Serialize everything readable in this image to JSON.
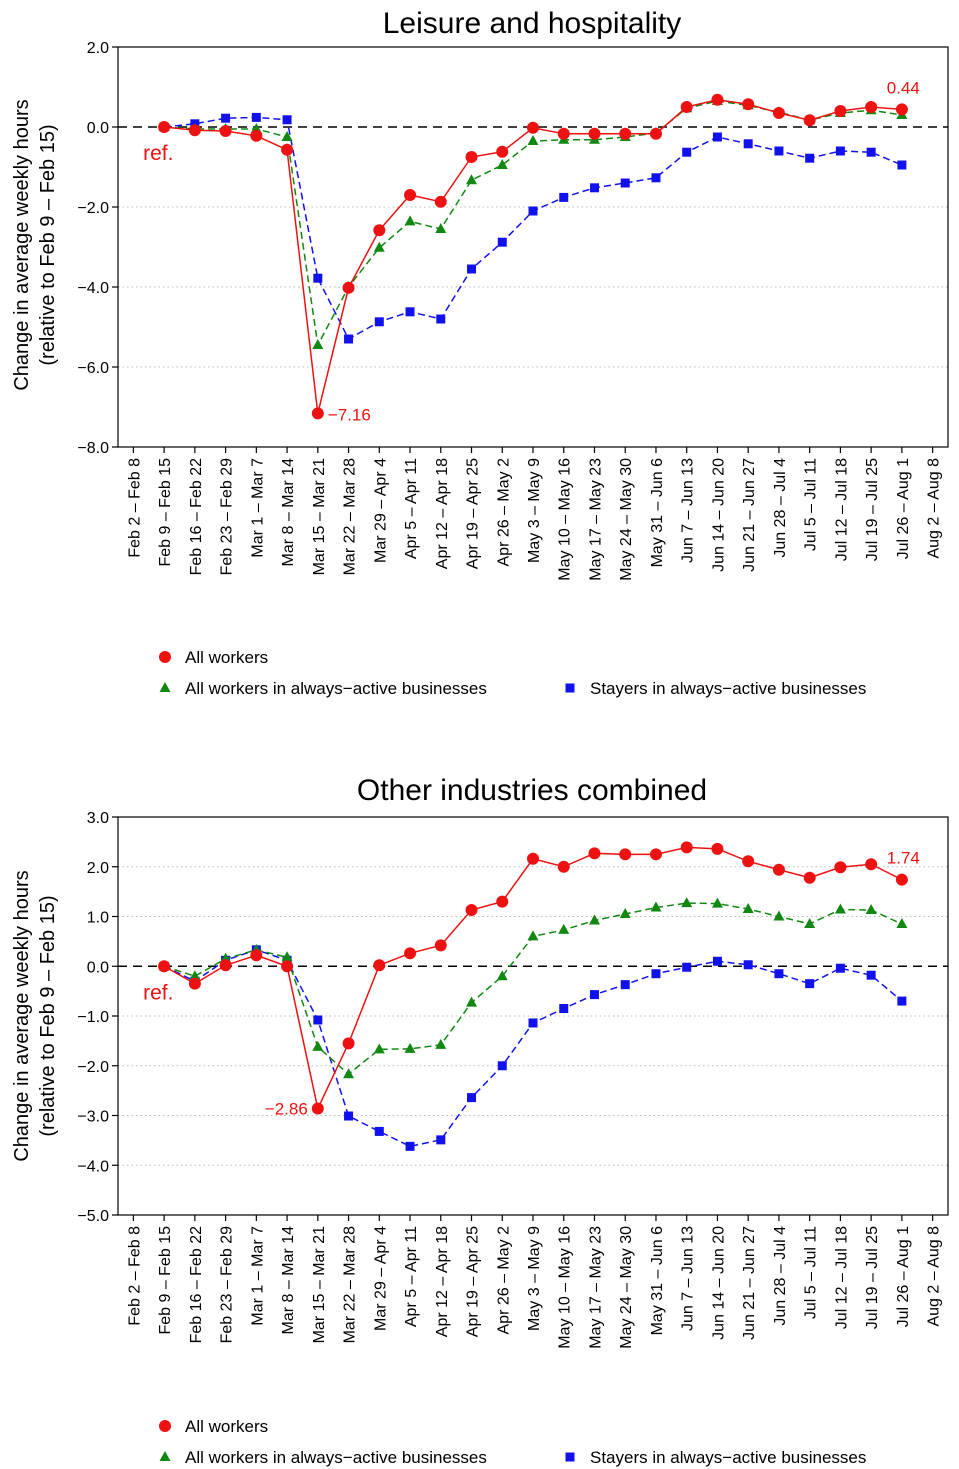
{
  "chart_data": [
    {
      "type": "line",
      "title": "Leisure and hospitality",
      "ylabel_line1": "Change in average weekly hours",
      "ylabel_line2": "(relative to Feb 9 – Feb 15)",
      "ylim": [
        -8.0,
        2.0
      ],
      "yticks": [
        "2.0",
        "0.0",
        "−2.0",
        "−4.0",
        "−6.0",
        "−8.0"
      ],
      "ytick_values": [
        2.0,
        0.0,
        -2.0,
        -4.0,
        -6.0,
        -8.0
      ],
      "categories": [
        "Feb 2 – Feb 8",
        "Feb 9 – Feb 15",
        "Feb 16 – Feb 22",
        "Feb 23 – Feb 29",
        "Mar 1 – Mar 7",
        "Mar 8 – Mar 14",
        "Mar 15 – Mar 21",
        "Mar 22 – Mar 28",
        "Mar 29 – Apr 4",
        "Apr 5 – Apr 11",
        "Apr 12 – Apr 18",
        "Apr 19 – Apr 25",
        "Apr 26 – May 2",
        "May 3 – May 9",
        "May 10 – May 16",
        "May 17 – May 23",
        "May 24 – May 30",
        "May 31 – Jun 6",
        "Jun 7 – Jun 13",
        "Jun 14 – Jun 20",
        "Jun 21 – Jun 27",
        "Jun 28 – Jul 4",
        "Jul 5 – Jul 11",
        "Jul 12 – Jul 18",
        "Jul 19 – Jul 25",
        "Jul 26 – Aug 1",
        "Aug 2 – Aug 8"
      ],
      "ref_label": "ref.",
      "grid": "horizontal-dotted",
      "series": [
        {
          "name": "All workers",
          "color": "#ee1111",
          "marker": "circle",
          "dash": "solid",
          "values": [
            null,
            0.0,
            -0.08,
            -0.1,
            -0.22,
            -0.57,
            -7.16,
            -4.02,
            -2.58,
            -1.7,
            -1.87,
            -0.75,
            -0.62,
            -0.02,
            -0.17,
            -0.17,
            -0.17,
            -0.17,
            0.5,
            0.68,
            0.57,
            0.35,
            0.17,
            0.4,
            0.5,
            0.44,
            null
          ]
        },
        {
          "name": "All workers in always−active businesses",
          "color": "#118811",
          "marker": "triangle",
          "dash": "dashed",
          "values": [
            null,
            0.0,
            -0.05,
            -0.05,
            -0.05,
            -0.25,
            -5.45,
            -4.0,
            -3.02,
            -2.36,
            -2.55,
            -1.33,
            -0.95,
            -0.35,
            -0.32,
            -0.32,
            -0.25,
            -0.15,
            0.47,
            0.65,
            0.54,
            0.37,
            0.17,
            0.35,
            0.42,
            0.3,
            null
          ]
        },
        {
          "name": "Stayers in always−active businesses",
          "color": "#1111ee",
          "marker": "square",
          "dash": "dashed",
          "values": [
            null,
            0.0,
            0.08,
            0.22,
            0.24,
            0.18,
            -3.78,
            -5.3,
            -4.87,
            -4.62,
            -4.8,
            -3.55,
            -2.88,
            -2.1,
            -1.76,
            -1.52,
            -1.4,
            -1.27,
            -0.63,
            -0.25,
            -0.42,
            -0.6,
            -0.78,
            -0.6,
            -0.63,
            -0.95,
            null
          ]
        }
      ],
      "annotations": [
        {
          "text": "−7.16",
          "index": 6,
          "series": 0
        },
        {
          "text": "0.44",
          "index": 25,
          "series": 0
        }
      ],
      "legend": [
        "All workers",
        "All workers in always−active businesses",
        "Stayers in always−active businesses"
      ],
      "legend_position": "bottom"
    },
    {
      "type": "line",
      "title": "Other industries combined",
      "ylabel_line1": "Change in average weekly hours",
      "ylabel_line2": "(relative to Feb 9 – Feb 15)",
      "ylim": [
        -5.0,
        3.0
      ],
      "yticks": [
        "3.0",
        "2.0",
        "1.0",
        "0.0",
        "−1.0",
        "−2.0",
        "−3.0",
        "−4.0",
        "−5.0"
      ],
      "ytick_values": [
        3.0,
        2.0,
        1.0,
        0.0,
        -1.0,
        -2.0,
        -3.0,
        -4.0,
        -5.0
      ],
      "categories": [
        "Feb 2 – Feb 8",
        "Feb 9 – Feb 15",
        "Feb 16 – Feb 22",
        "Feb 23 – Feb 29",
        "Mar 1 – Mar 7",
        "Mar 8 – Mar 14",
        "Mar 15 – Mar 21",
        "Mar 22 – Mar 28",
        "Mar 29 – Apr 4",
        "Apr 5 – Apr 11",
        "Apr 12 – Apr 18",
        "Apr 19 – Apr 25",
        "Apr 26 – May 2",
        "May 3 – May 9",
        "May 10 – May 16",
        "May 17 – May 23",
        "May 24 – May 30",
        "May 31 – Jun 6",
        "Jun 7 – Jun 13",
        "Jun 14 – Jun 20",
        "Jun 21 – Jun 27",
        "Jun 28 – Jul 4",
        "Jul 5 – Jul 11",
        "Jul 12 – Jul 18",
        "Jul 19 – Jul 25",
        "Jul 26 – Aug 1",
        "Aug 2 – Aug 8"
      ],
      "ref_label": "ref.",
      "grid": "horizontal-dotted",
      "series": [
        {
          "name": "All workers",
          "color": "#ee1111",
          "marker": "circle",
          "dash": "solid",
          "values": [
            null,
            0.0,
            -0.35,
            0.02,
            0.22,
            0.0,
            -2.86,
            -1.55,
            0.02,
            0.26,
            0.42,
            1.13,
            1.3,
            2.16,
            2.0,
            2.27,
            2.25,
            2.25,
            2.39,
            2.36,
            2.11,
            1.94,
            1.78,
            1.99,
            2.05,
            1.74,
            null
          ]
        },
        {
          "name": "All workers in always−active businesses",
          "color": "#118811",
          "marker": "triangle",
          "dash": "dashed",
          "values": [
            null,
            0.0,
            -0.2,
            0.15,
            0.33,
            0.18,
            -1.62,
            -2.17,
            -1.67,
            -1.66,
            -1.58,
            -0.73,
            -0.2,
            0.6,
            0.73,
            0.92,
            1.05,
            1.18,
            1.27,
            1.26,
            1.15,
            1.0,
            0.85,
            1.14,
            1.13,
            0.85,
            null
          ]
        },
        {
          "name": "Stayers in always−active businesses",
          "color": "#1111ee",
          "marker": "square",
          "dash": "dashed",
          "values": [
            null,
            0.0,
            -0.3,
            0.12,
            0.33,
            0.12,
            -1.08,
            -3.01,
            -3.32,
            -3.62,
            -3.49,
            -2.64,
            -2.0,
            -1.14,
            -0.85,
            -0.57,
            -0.37,
            -0.15,
            -0.02,
            0.1,
            0.03,
            -0.15,
            -0.35,
            -0.04,
            -0.18,
            -0.7,
            null
          ]
        }
      ],
      "annotations": [
        {
          "text": "−2.86",
          "index": 6,
          "series": 0
        },
        {
          "text": "1.74",
          "index": 25,
          "series": 0
        }
      ],
      "legend": [
        "All workers",
        "All workers in always−active businesses",
        "Stayers in always−active businesses"
      ],
      "legend_position": "bottom"
    }
  ]
}
